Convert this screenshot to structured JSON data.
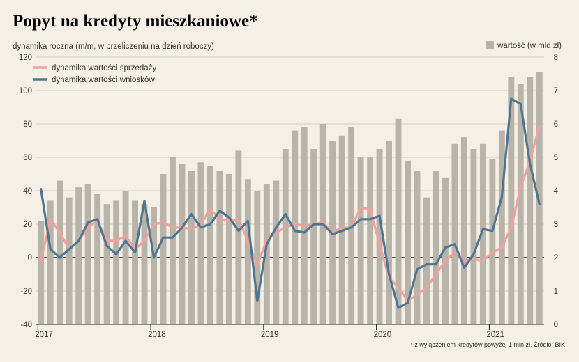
{
  "title": "Popyt na kredyty mieszkaniowe*",
  "footnote": "* z wyłączeniem kredytów powyżej 1 mln zł. Źródło: BIK",
  "chart_data": {
    "type": "bar+line",
    "ylabel_left": "dynamika roczna (m/m, w przeliczeniu na dzień roboczy)",
    "ylabel_right": "",
    "ylim_left": [
      -40,
      120
    ],
    "ylim_right": [
      0,
      8
    ],
    "yticks_left": [
      "120",
      "100",
      "80",
      "60",
      "40",
      "20",
      "0",
      "-20",
      "-40"
    ],
    "yticks_right": [
      "8",
      "7",
      "6",
      "5",
      "4",
      "3",
      "2",
      "1",
      "0"
    ],
    "x_labels": [
      "2017",
      "2018",
      "2019",
      "2020",
      "2021"
    ],
    "x_label_month_index": [
      0,
      12,
      24,
      36,
      48
    ],
    "grid": true,
    "legend_position": "top-left",
    "bars": {
      "name": "wartość (w mld zł)",
      "color": "#b9b4aa",
      "values": [
        3.1,
        3.7,
        4.3,
        3.8,
        4.1,
        4.2,
        3.9,
        3.6,
        3.7,
        4.0,
        3.7,
        3.6,
        3.5,
        4.5,
        5.0,
        4.8,
        4.6,
        4.85,
        4.75,
        4.6,
        4.5,
        5.2,
        4.35,
        4.0,
        4.2,
        4.3,
        5.25,
        5.8,
        5.9,
        5.25,
        6.0,
        5.5,
        5.65,
        5.9,
        5.0,
        5.0,
        5.25,
        5.5,
        6.15,
        4.9,
        4.6,
        3.8,
        4.6,
        4.4,
        5.4,
        5.6,
        5.25,
        5.4,
        4.95,
        5.8,
        7.4,
        7.2,
        7.4,
        7.55
      ]
    },
    "series": [
      {
        "name": "dynamika wartości sprzedaży",
        "color": "#f4a09c",
        "values": [
          -2,
          23,
          15,
          5,
          10,
          18,
          22,
          10,
          10,
          13,
          5,
          10,
          20,
          21,
          18,
          18,
          17,
          20,
          29,
          23,
          22,
          23,
          10,
          -5,
          11,
          15,
          18,
          20,
          19,
          20,
          21,
          15,
          18,
          18,
          30,
          29,
          8,
          -12,
          -18,
          -26,
          -22,
          -18,
          -10,
          -2,
          3,
          -2,
          -1,
          -2,
          3,
          6,
          18,
          42,
          58,
          79
        ]
      },
      {
        "name": "dynamika wartości wniosków",
        "color": "#4f7690",
        "values": [
          41,
          5,
          0,
          5,
          10,
          21,
          23,
          7,
          2,
          10,
          3,
          34,
          0,
          12,
          12,
          18,
          26,
          18,
          20,
          28,
          24,
          16,
          22,
          -26,
          8,
          18,
          26,
          16,
          15,
          20,
          20,
          14,
          16,
          18,
          23,
          23,
          25,
          -10,
          -30,
          -27,
          -7,
          -4,
          -4,
          6,
          8,
          -6,
          2,
          17,
          16,
          36,
          95,
          92,
          56,
          32
        ]
      }
    ]
  }
}
